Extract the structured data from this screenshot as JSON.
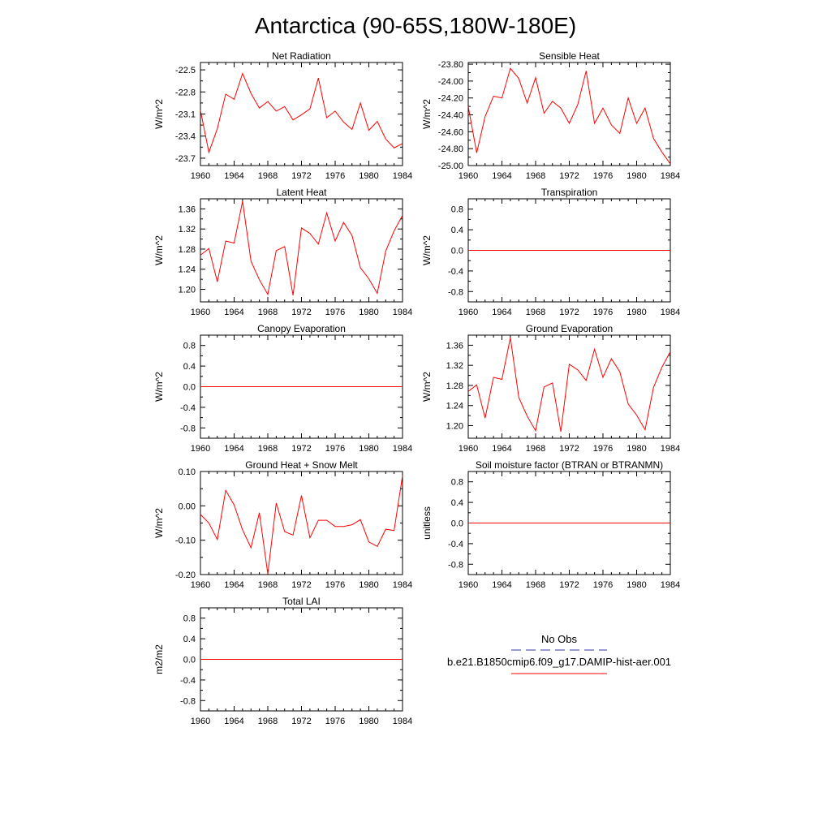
{
  "figure": {
    "title": "Antarctica (90-65S,180W-180E)"
  },
  "legend": {
    "obs_label": "No Obs",
    "obs_color": "#3333aa",
    "model_label": "b.e21.B1850cmip6.f09_g17.DAMIP-hist-aer.001",
    "model_color": "#ff0000"
  },
  "chart_data": [
    {
      "type": "line",
      "title": "Net Radiation",
      "ylabel": "W/m^2",
      "x": [
        1960,
        1961,
        1962,
        1963,
        1964,
        1965,
        1966,
        1967,
        1968,
        1969,
        1970,
        1971,
        1972,
        1973,
        1974,
        1975,
        1976,
        1977,
        1978,
        1979,
        1980,
        1981,
        1982,
        1983,
        1984
      ],
      "xlim": [
        1960,
        1984
      ],
      "xticks": [
        1960,
        1964,
        1968,
        1972,
        1976,
        1980,
        1984
      ],
      "ylim": [
        -23.8,
        -22.4
      ],
      "yticks": [
        -22.5,
        -22.8,
        -23.1,
        -23.4,
        -23.7
      ],
      "ytick_labels": [
        "-22.5",
        "-22.8",
        "-23.1",
        "-23.4",
        "-23.7"
      ],
      "series": [
        {
          "values": [
            -23.05,
            -23.62,
            -23.3,
            -22.83,
            -22.9,
            -22.55,
            -22.82,
            -23.02,
            -22.93,
            -23.06,
            -23.0,
            -23.18,
            -23.11,
            -23.03,
            -22.61,
            -23.15,
            -23.06,
            -23.21,
            -23.31,
            -22.95,
            -23.32,
            -23.2,
            -23.44,
            -23.56,
            -23.5
          ]
        }
      ]
    },
    {
      "type": "line",
      "title": "Sensible Heat",
      "ylabel": "W/m^2",
      "x": [
        1960,
        1961,
        1962,
        1963,
        1964,
        1965,
        1966,
        1967,
        1968,
        1969,
        1970,
        1971,
        1972,
        1973,
        1974,
        1975,
        1976,
        1977,
        1978,
        1979,
        1980,
        1981,
        1982,
        1983,
        1984
      ],
      "xlim": [
        1960,
        1984
      ],
      "xticks": [
        1960,
        1964,
        1968,
        1972,
        1976,
        1980,
        1984
      ],
      "ylim": [
        -25.0,
        -23.78
      ],
      "yticks": [
        -23.8,
        -24.0,
        -24.2,
        -24.4,
        -24.6,
        -24.8,
        -25.0
      ],
      "ytick_labels": [
        "-23.80",
        "-24.00",
        "-24.20",
        "-24.40",
        "-24.60",
        "-24.80",
        "-25.00"
      ],
      "series": [
        {
          "values": [
            -24.3,
            -24.85,
            -24.42,
            -24.18,
            -24.2,
            -23.85,
            -23.97,
            -24.26,
            -23.96,
            -24.38,
            -24.24,
            -24.32,
            -24.5,
            -24.28,
            -23.88,
            -24.5,
            -24.32,
            -24.52,
            -24.62,
            -24.2,
            -24.5,
            -24.32,
            -24.68,
            -24.84,
            -24.98
          ]
        }
      ]
    },
    {
      "type": "line",
      "title": "Latent Heat",
      "ylabel": "W/m^2",
      "x": [
        1960,
        1961,
        1962,
        1963,
        1964,
        1965,
        1966,
        1967,
        1968,
        1969,
        1970,
        1971,
        1972,
        1973,
        1974,
        1975,
        1976,
        1977,
        1978,
        1979,
        1980,
        1981,
        1982,
        1983,
        1984
      ],
      "xlim": [
        1960,
        1984
      ],
      "xticks": [
        1960,
        1964,
        1968,
        1972,
        1976,
        1980,
        1984
      ],
      "ylim": [
        1.175,
        1.38
      ],
      "yticks": [
        1.2,
        1.24,
        1.28,
        1.32,
        1.36
      ],
      "ytick_labels": [
        "1.20",
        "1.24",
        "1.28",
        "1.32",
        "1.36"
      ],
      "series": [
        {
          "values": [
            1.268,
            1.281,
            1.215,
            1.296,
            1.292,
            1.375,
            1.256,
            1.219,
            1.19,
            1.277,
            1.285,
            1.188,
            1.322,
            1.311,
            1.29,
            1.352,
            1.296,
            1.333,
            1.307,
            1.243,
            1.221,
            1.192,
            1.276,
            1.316,
            1.347
          ]
        }
      ]
    },
    {
      "type": "line",
      "title": "Transpiration",
      "ylabel": "W/m^2",
      "x": [
        1960,
        1984
      ],
      "xlim": [
        1960,
        1984
      ],
      "xticks": [
        1960,
        1964,
        1968,
        1972,
        1976,
        1980,
        1984
      ],
      "ylim": [
        -1.0,
        1.0
      ],
      "yticks": [
        0.8,
        0.4,
        0.0,
        -0.4,
        -0.8
      ],
      "ytick_labels": [
        "0.8",
        "0.4",
        "0.0",
        "-0.4",
        "-0.8"
      ],
      "series": [
        {
          "values": [
            0.0,
            0.0
          ]
        }
      ]
    },
    {
      "type": "line",
      "title": "Canopy Evaporation",
      "ylabel": "W/m^2",
      "x": [
        1960,
        1984
      ],
      "xlim": [
        1960,
        1984
      ],
      "xticks": [
        1960,
        1964,
        1968,
        1972,
        1976,
        1980,
        1984
      ],
      "ylim": [
        -1.0,
        1.0
      ],
      "yticks": [
        0.8,
        0.4,
        0.0,
        -0.4,
        -0.8
      ],
      "ytick_labels": [
        "0.8",
        "0.4",
        "0.0",
        "-0.4",
        "-0.8"
      ],
      "series": [
        {
          "values": [
            0.0,
            0.0
          ]
        }
      ]
    },
    {
      "type": "line",
      "title": "Ground Evaporation",
      "ylabel": "W/m^2",
      "x": [
        1960,
        1961,
        1962,
        1963,
        1964,
        1965,
        1966,
        1967,
        1968,
        1969,
        1970,
        1971,
        1972,
        1973,
        1974,
        1975,
        1976,
        1977,
        1978,
        1979,
        1980,
        1981,
        1982,
        1983,
        1984
      ],
      "xlim": [
        1960,
        1984
      ],
      "xticks": [
        1960,
        1964,
        1968,
        1972,
        1976,
        1980,
        1984
      ],
      "ylim": [
        1.175,
        1.38
      ],
      "yticks": [
        1.2,
        1.24,
        1.28,
        1.32,
        1.36
      ],
      "ytick_labels": [
        "1.20",
        "1.24",
        "1.28",
        "1.32",
        "1.36"
      ],
      "series": [
        {
          "values": [
            1.268,
            1.281,
            1.215,
            1.296,
            1.292,
            1.375,
            1.256,
            1.219,
            1.19,
            1.277,
            1.285,
            1.188,
            1.322,
            1.311,
            1.29,
            1.352,
            1.296,
            1.333,
            1.307,
            1.243,
            1.221,
            1.192,
            1.276,
            1.316,
            1.347
          ]
        }
      ]
    },
    {
      "type": "line",
      "title": "Ground Heat + Snow Melt",
      "ylabel": "W/m^2",
      "x": [
        1960,
        1961,
        1962,
        1963,
        1964,
        1965,
        1966,
        1967,
        1968,
        1969,
        1970,
        1971,
        1972,
        1973,
        1974,
        1975,
        1976,
        1977,
        1978,
        1979,
        1980,
        1981,
        1982,
        1983,
        1984
      ],
      "xlim": [
        1960,
        1984
      ],
      "xticks": [
        1960,
        1964,
        1968,
        1972,
        1976,
        1980,
        1984
      ],
      "ylim": [
        -0.2,
        0.1
      ],
      "yticks": [
        0.1,
        0.0,
        -0.1,
        -0.2
      ],
      "ytick_labels": [
        "0.10",
        "0.00",
        "-0.10",
        "-0.20"
      ],
      "series": [
        {
          "values": [
            -0.025,
            -0.05,
            -0.098,
            0.045,
            0.003,
            -0.07,
            -0.122,
            -0.02,
            -0.198,
            0.008,
            -0.075,
            -0.085,
            0.03,
            -0.093,
            -0.042,
            -0.042,
            -0.06,
            -0.06,
            -0.055,
            -0.04,
            -0.105,
            -0.118,
            -0.068,
            -0.072,
            0.088
          ]
        }
      ]
    },
    {
      "type": "line",
      "title": "Soil moisture factor (BTRAN or BTRANMN)",
      "ylabel": "unitless",
      "x": [
        1960,
        1984
      ],
      "xlim": [
        1960,
        1984
      ],
      "xticks": [
        1960,
        1964,
        1968,
        1972,
        1976,
        1980,
        1984
      ],
      "ylim": [
        -1.0,
        1.0
      ],
      "yticks": [
        0.8,
        0.4,
        0.0,
        -0.4,
        -0.8
      ],
      "ytick_labels": [
        "0.8",
        "0.4",
        "0.0",
        "-0.4",
        "-0.8"
      ],
      "series": [
        {
          "values": [
            0.0,
            0.0
          ]
        }
      ]
    },
    {
      "type": "line",
      "title": "Total LAI",
      "ylabel": "m2/m2",
      "x": [
        1960,
        1984
      ],
      "xlim": [
        1960,
        1984
      ],
      "xticks": [
        1960,
        1964,
        1968,
        1972,
        1976,
        1980,
        1984
      ],
      "ylim": [
        -1.0,
        1.0
      ],
      "yticks": [
        0.8,
        0.4,
        0.0,
        -0.4,
        -0.8
      ],
      "ytick_labels": [
        "0.8",
        "0.4",
        "0.0",
        "-0.4",
        "-0.8"
      ],
      "series": [
        {
          "values": [
            0.0,
            0.0
          ]
        }
      ]
    }
  ]
}
